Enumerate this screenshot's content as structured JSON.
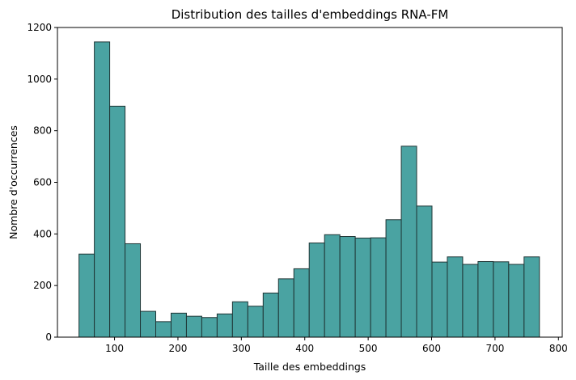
{
  "chart_data": {
    "type": "bar",
    "subtype": "histogram",
    "title": "Distribution des tailles d'embeddings RNA-FM",
    "xlabel": "Taille des embeddings",
    "ylabel": "Nombre d'occurrences",
    "xlim": [
      10,
      806
    ],
    "ylim": [
      0,
      1200
    ],
    "xticks": [
      100,
      200,
      300,
      400,
      500,
      600,
      700,
      800
    ],
    "yticks": [
      0,
      200,
      400,
      600,
      800,
      1000,
      1200
    ],
    "bin_start": 44,
    "bin_width": 24.2,
    "values": [
      322,
      1144,
      895,
      362,
      100,
      60,
      93,
      81,
      76,
      90,
      137,
      120,
      171,
      226,
      265,
      365,
      397,
      390,
      384,
      385,
      455,
      740,
      508,
      291,
      311,
      282,
      293,
      292,
      282,
      311
    ],
    "bar_color": "#4aa3a2",
    "edge_color": "#1f3535",
    "grid": false,
    "legend": "none"
  }
}
